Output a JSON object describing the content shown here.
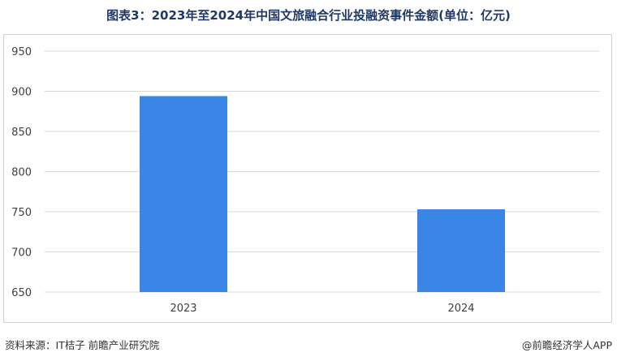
{
  "title": "图表3：2023年至2024年中国文旅融合行业投融资事件金额(单位：亿元)",
  "source": "资料来源：IT桔子 前瞻产业研究院",
  "credit": "@前瞻经济学人APP",
  "colors": {
    "bar": "#3a85e6",
    "grid": "#d9d9d9",
    "tick_text": "#404040"
  },
  "chart_data": {
    "type": "bar",
    "categories": [
      "2023",
      "2024"
    ],
    "values": [
      894,
      753
    ],
    "title": "图表3：2023年至2024年中国文旅融合行业投融资事件金额(单位：亿元)",
    "xlabel": "",
    "ylabel": "",
    "ylim": [
      650,
      950
    ],
    "yticks": [
      650,
      700,
      750,
      800,
      850,
      900,
      950
    ],
    "grid": true,
    "legend": "none"
  }
}
